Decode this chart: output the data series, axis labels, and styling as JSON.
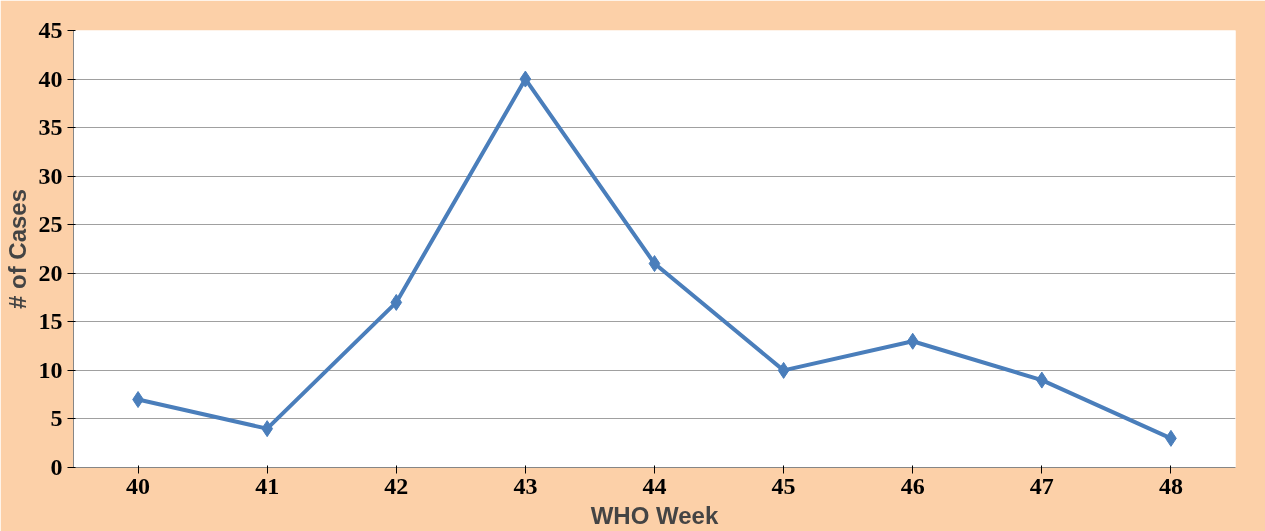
{
  "chart_data": {
    "type": "line",
    "xlabel": "WHO Week",
    "ylabel": "# of Cases",
    "categories": [
      "40",
      "41",
      "42",
      "43",
      "44",
      "45",
      "46",
      "47",
      "48"
    ],
    "series": [
      {
        "color": "#4a7ebb",
        "values": [
          7,
          4,
          17,
          40,
          21,
          10,
          13,
          9,
          3
        ]
      }
    ],
    "ylim": [
      0,
      45
    ],
    "yticks": [
      0,
      5,
      10,
      15,
      20,
      25,
      30,
      35,
      40,
      45
    ],
    "grid": "y",
    "marker": "diamond",
    "line_style": "solid"
  }
}
